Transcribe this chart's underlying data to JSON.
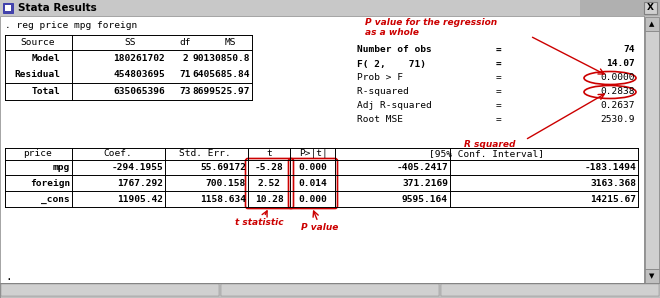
{
  "title_bar": "Stata Results",
  "command": ". reg price mpg foreign",
  "bg_color": "#c0c0c0",
  "window_bg": "#ffffff",
  "text_color": "#000000",
  "red_color": "#cc0000",
  "titlebar_color": "#c0c0c0",
  "anova_headers": [
    "Source",
    "SS",
    "df",
    "MS"
  ],
  "anova_rows": [
    [
      "Model",
      "180261702",
      "2",
      "90130850.8"
    ],
    [
      "Residual",
      "454803695",
      "71",
      "6405685.84"
    ],
    [
      "Total",
      "635065396",
      "73",
      "8699525.97"
    ]
  ],
  "stats_labels": [
    "Number of obs",
    "F( 2,    71)",
    "Prob > F    ",
    "R-squared   ",
    "Adj R-squared",
    "Root MSE    "
  ],
  "stats_values": [
    "74",
    "14.07",
    "0.0000",
    "0.2838",
    "0.2637",
    "2530.9"
  ],
  "reg_rows": [
    [
      "mpg",
      "-294.1955",
      "55.69172",
      "-5.28",
      "0.000",
      "-405.2417",
      "-183.1494"
    ],
    [
      "foreign",
      "1767.292",
      "700.158",
      "2.52",
      "0.014",
      "371.2169",
      "3163.368"
    ],
    [
      "_cons",
      "11905.42",
      "1158.634",
      "10.28",
      "0.000",
      "9595.164",
      "14215.67"
    ]
  ],
  "annotation_pvalue_reg": "P value for the regression\nas a whole",
  "annotation_rsquared": "R squared",
  "annotation_tstat": "t statistic",
  "annotation_pvalue": "P value"
}
